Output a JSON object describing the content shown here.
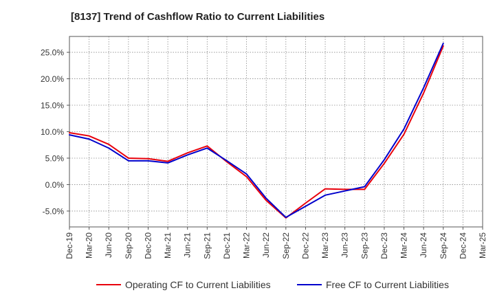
{
  "chart_data": {
    "type": "line",
    "title": "[8137]  Trend of Cashflow Ratio to Current Liabilities",
    "xlabel": "",
    "ylabel": "",
    "categories": [
      "Dec-19",
      "Mar-20",
      "Jun-20",
      "Sep-20",
      "Dec-20",
      "Mar-21",
      "Jun-21",
      "Sep-21",
      "Dec-21",
      "Mar-22",
      "Jun-22",
      "Sep-22",
      "Dec-22",
      "Mar-23",
      "Jun-23",
      "Sep-23",
      "Dec-23",
      "Mar-24",
      "Jun-24",
      "Sep-24",
      "Dec-24",
      "Mar-25"
    ],
    "y_ticks": [
      "-5.0%",
      "0.0%",
      "5.0%",
      "10.0%",
      "15.0%",
      "20.0%",
      "25.0%"
    ],
    "y_tick_values": [
      -5,
      0,
      5,
      10,
      15,
      20,
      25
    ],
    "ylim": [
      -8,
      28
    ],
    "grid": true,
    "legend_position": "bottom",
    "series": [
      {
        "name": "Operating CF to Current Liabilities",
        "color": "#e8000b",
        "values": [
          9.8,
          9.2,
          7.6,
          5.0,
          4.9,
          4.4,
          6.0,
          7.3,
          4.3,
          1.5,
          -3.0,
          -6.3,
          -3.5,
          -0.8,
          -0.9,
          -0.9,
          4.0,
          9.5,
          17.3,
          26.2,
          null,
          null
        ]
      },
      {
        "name": "Free CF to Current Liabilities",
        "color": "#0000cc",
        "values": [
          9.4,
          8.6,
          6.9,
          4.5,
          4.5,
          4.1,
          5.6,
          6.9,
          4.5,
          2.0,
          -2.6,
          -6.2,
          -4.1,
          -2.0,
          -1.2,
          -0.4,
          4.7,
          10.5,
          18.3,
          26.7,
          null,
          null
        ]
      }
    ]
  }
}
